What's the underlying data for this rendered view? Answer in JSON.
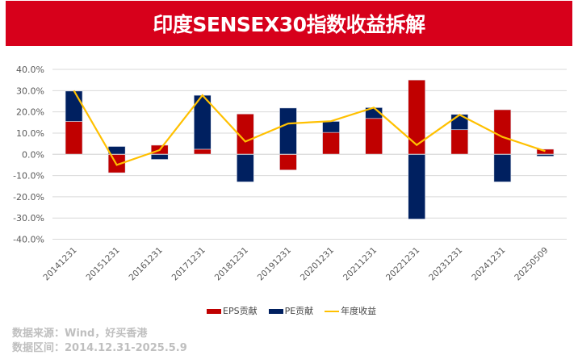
{
  "title": "印度SENSEX30指数收益拆解",
  "chart_data": {
    "type": "bar",
    "stacked": true,
    "title": "",
    "categories": [
      "20141231",
      "20151231",
      "20161231",
      "20171231",
      "20181231",
      "20191231",
      "20201231",
      "20211231",
      "20221231",
      "20231231",
      "20241231",
      "20250509"
    ],
    "series": [
      {
        "name": "EPS贡献",
        "type": "bar",
        "color": "#c00000",
        "values": [
          15.5,
          -8.7,
          4.3,
          2.4,
          19.0,
          -7.4,
          10.3,
          16.9,
          35.0,
          11.6,
          21.0,
          2.4
        ]
      },
      {
        "name": "PE贡献",
        "type": "bar",
        "color": "#002060",
        "values": [
          14.3,
          3.7,
          -2.4,
          25.4,
          -13.0,
          21.8,
          5.2,
          5.1,
          -30.5,
          7.2,
          -13.0,
          -0.9
        ]
      },
      {
        "name": "年度收益",
        "type": "line",
        "color": "#ffc000",
        "values": [
          30.0,
          -5.0,
          2.0,
          27.8,
          6.0,
          14.5,
          15.6,
          22.0,
          4.4,
          18.6,
          8.2,
          1.5
        ]
      }
    ],
    "ylim": [
      -40,
      40
    ],
    "yticks": [
      "40.0%",
      "30.0%",
      "20.0%",
      "10.0%",
      "0.0%",
      "-10.0%",
      "-20.0%",
      "-30.0%",
      "-40.0%"
    ],
    "grid": true,
    "legend": "bottom"
  },
  "notes": {
    "source": "数据来源：Wind，好买香港",
    "period": "数据区间：2014.12.31-2025.5.9"
  }
}
